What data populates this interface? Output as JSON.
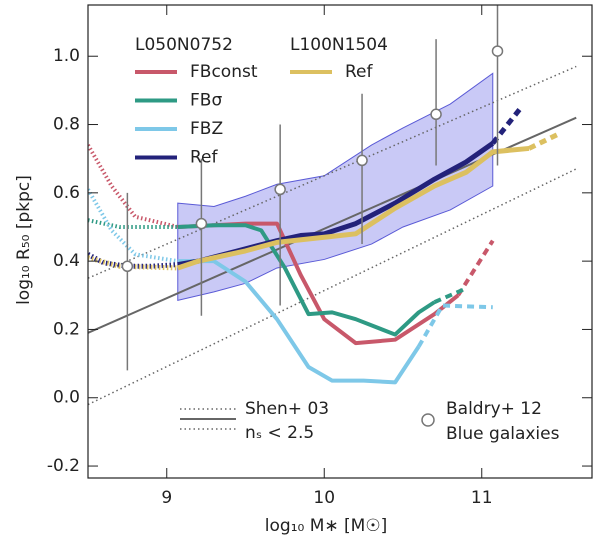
{
  "chart_data": {
    "type": "line",
    "xlabel": "log₁₀ M∗ [M☉]",
    "ylabel": "log₁₀ R₅₀ [pkpc]",
    "xlim": [
      8.5,
      11.7
    ],
    "ylim": [
      -0.235,
      1.15
    ],
    "xticks": [
      9,
      10,
      11
    ],
    "yticks": [
      -0.2,
      {
        "value": 0,
        "label": "0.0"
      },
      0.2,
      0.4,
      0.6,
      0.8,
      {
        "value": 1,
        "label": "1.0"
      }
    ],
    "band": {
      "color": "#c9c9f6",
      "edge": "#5a5ad6",
      "x": [
        9.07,
        9.3,
        9.5,
        9.7,
        10.0,
        10.3,
        10.5,
        10.8,
        11.07
      ],
      "upper": [
        0.57,
        0.56,
        0.59,
        0.625,
        0.65,
        0.74,
        0.79,
        0.86,
        0.95
      ],
      "lower": [
        0.285,
        0.31,
        0.335,
        0.38,
        0.405,
        0.45,
        0.5,
        0.55,
        0.62
      ]
    },
    "shen03": {
      "label": "Shen+ 03",
      "sublabel": "nₛ < 2.5",
      "color": "#666666",
      "x": [
        8.5,
        11.6
      ],
      "median": [
        0.19,
        0.82
      ],
      "upper": [
        0.35,
        0.97
      ],
      "lower": [
        -0.02,
        0.67
      ]
    },
    "simulations": [
      {
        "title": "L050N0752",
        "series": [
          {
            "name": "FBconst",
            "color": "#c8586a",
            "x": [
              9.07,
              9.3,
              9.5,
              9.7,
              9.85,
              10.0,
              10.2,
              10.45,
              10.7,
              10.85
            ],
            "values": [
              0.5,
              0.505,
              0.51,
              0.51,
              0.36,
              0.23,
              0.16,
              0.17,
              0.245,
              0.3
            ],
            "dashed_x": [
              10.85,
              11.07
            ],
            "dashed_values": [
              0.3,
              0.46
            ],
            "dotted_x": [
              8.5,
              8.65,
              8.8,
              9.07
            ],
            "dotted_values": [
              0.74,
              0.62,
              0.53,
              0.5
            ]
          },
          {
            "name": "FBσ",
            "color": "#2e9a84",
            "x": [
              9.07,
              9.3,
              9.5,
              9.6,
              9.75,
              9.9,
              10.05,
              10.2,
              10.45,
              10.6,
              10.7
            ],
            "values": [
              0.5,
              0.505,
              0.505,
              0.49,
              0.38,
              0.245,
              0.25,
              0.23,
              0.185,
              0.25,
              0.28
            ],
            "dashed_x": [
              10.7,
              10.9
            ],
            "dashed_values": [
              0.28,
              0.32
            ],
            "dotted_x": [
              8.5,
              8.7,
              9.07
            ],
            "dotted_values": [
              0.52,
              0.5,
              0.5
            ]
          },
          {
            "name": "FBZ",
            "color": "#7ec8e8",
            "x": [
              9.07,
              9.3,
              9.5,
              9.7,
              9.9,
              10.05,
              10.25,
              10.45,
              10.6
            ],
            "values": [
              0.4,
              0.4,
              0.34,
              0.23,
              0.09,
              0.05,
              0.05,
              0.045,
              0.15
            ],
            "dashed_x": [
              10.6,
              10.75,
              11.07
            ],
            "dashed_values": [
              0.15,
              0.27,
              0.265
            ],
            "dotted_x": [
              8.5,
              8.65,
              8.8,
              9.07
            ],
            "dotted_values": [
              0.61,
              0.49,
              0.42,
              0.4
            ]
          },
          {
            "name": "Ref",
            "color": "#23227a",
            "x": [
              9.07,
              9.2,
              9.45,
              9.7,
              9.85,
              10.0,
              10.2,
              10.45,
              10.7,
              10.9,
              11.07
            ],
            "values": [
              0.39,
              0.4,
              0.43,
              0.46,
              0.475,
              0.48,
              0.51,
              0.57,
              0.64,
              0.69,
              0.745
            ],
            "dashed_x": [
              11.07,
              11.25
            ],
            "dashed_values": [
              0.745,
              0.85
            ],
            "dotted_x": [
              8.5,
              8.6,
              8.75,
              8.9,
              9.07
            ],
            "dotted_values": [
              0.42,
              0.395,
              0.385,
              0.385,
              0.39
            ]
          }
        ]
      },
      {
        "title": "L100N1504",
        "series": [
          {
            "name": "Ref",
            "color": "#dcc060",
            "x": [
              9.07,
              9.2,
              9.5,
              9.7,
              10.0,
              10.2,
              10.45,
              10.7,
              10.9,
              11.07,
              11.3
            ],
            "values": [
              0.38,
              0.4,
              0.43,
              0.455,
              0.47,
              0.48,
              0.555,
              0.62,
              0.66,
              0.72,
              0.73
            ],
            "dashed_x": [
              11.3,
              11.5
            ],
            "dashed_values": [
              0.73,
              0.775
            ],
            "dotted_x": [
              8.5,
              8.7,
              9.07
            ],
            "dotted_values": [
              0.41,
              0.385,
              0.38
            ]
          }
        ]
      }
    ],
    "baldry12": {
      "label": "Baldry+ 12",
      "sublabel": "Blue galaxies",
      "color": "#777777",
      "x": [
        8.75,
        9.22,
        9.72,
        10.24,
        10.71,
        11.1
      ],
      "values": [
        0.385,
        0.51,
        0.61,
        0.695,
        0.83,
        1.015
      ],
      "lower": [
        0.08,
        0.24,
        0.27,
        0.45,
        0.68,
        0.68
      ],
      "upper": [
        0.6,
        0.7,
        0.8,
        0.89,
        1.05,
        1.2
      ]
    }
  }
}
